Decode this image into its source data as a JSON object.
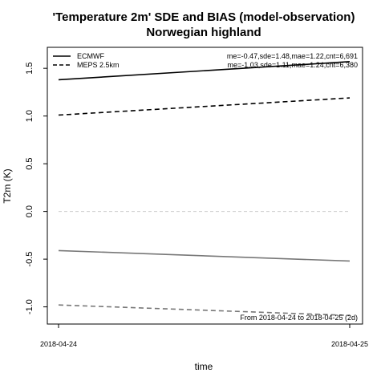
{
  "chart_data": {
    "type": "line",
    "title_line1": "'Temperature 2m' SDE and BIAS (model-observation)",
    "title_line2": "Norwegian highland",
    "xlabel": "time",
    "ylabel": "T2m (K)",
    "x": [
      "2018-04-24",
      "2018-04-25"
    ],
    "ylim": [
      -1.18,
      1.72
    ],
    "yticks": [
      -1.0,
      -0.5,
      0.0,
      0.5,
      1.0,
      1.5
    ],
    "ytick_labels": [
      "-1.0",
      "-0.5",
      "0.0",
      "0.5",
      "1.0",
      "1.5"
    ],
    "zero_line": 0.0,
    "legend": [
      {
        "label": "ECMWF",
        "dash": "solid"
      },
      {
        "label": "MEPS 2.5km",
        "dash": "dashed"
      }
    ],
    "series": [
      {
        "name": "ECMWF",
        "metric": "SDE",
        "dash": "solid",
        "color": "#000000",
        "values": [
          1.38,
          1.57
        ]
      },
      {
        "name": "MEPS 2.5km",
        "metric": "SDE",
        "dash": "dashed",
        "color": "#000000",
        "values": [
          1.01,
          1.19
        ]
      },
      {
        "name": "ECMWF",
        "metric": "BIAS",
        "dash": "solid",
        "color": "#777777",
        "values": [
          -0.41,
          -0.52
        ]
      },
      {
        "name": "MEPS 2.5km",
        "metric": "BIAS",
        "dash": "dashed",
        "color": "#777777",
        "values": [
          -0.98,
          -1.09
        ]
      }
    ],
    "stats": [
      "me=-0.47,sde=1.48,mae=1.22,cnt=6,691",
      "me=-1.03,sde=1.11,mae=1.24,cnt=6,380"
    ],
    "footnote": "From 2018-04-24 to 2018-04-25 (2d)"
  }
}
